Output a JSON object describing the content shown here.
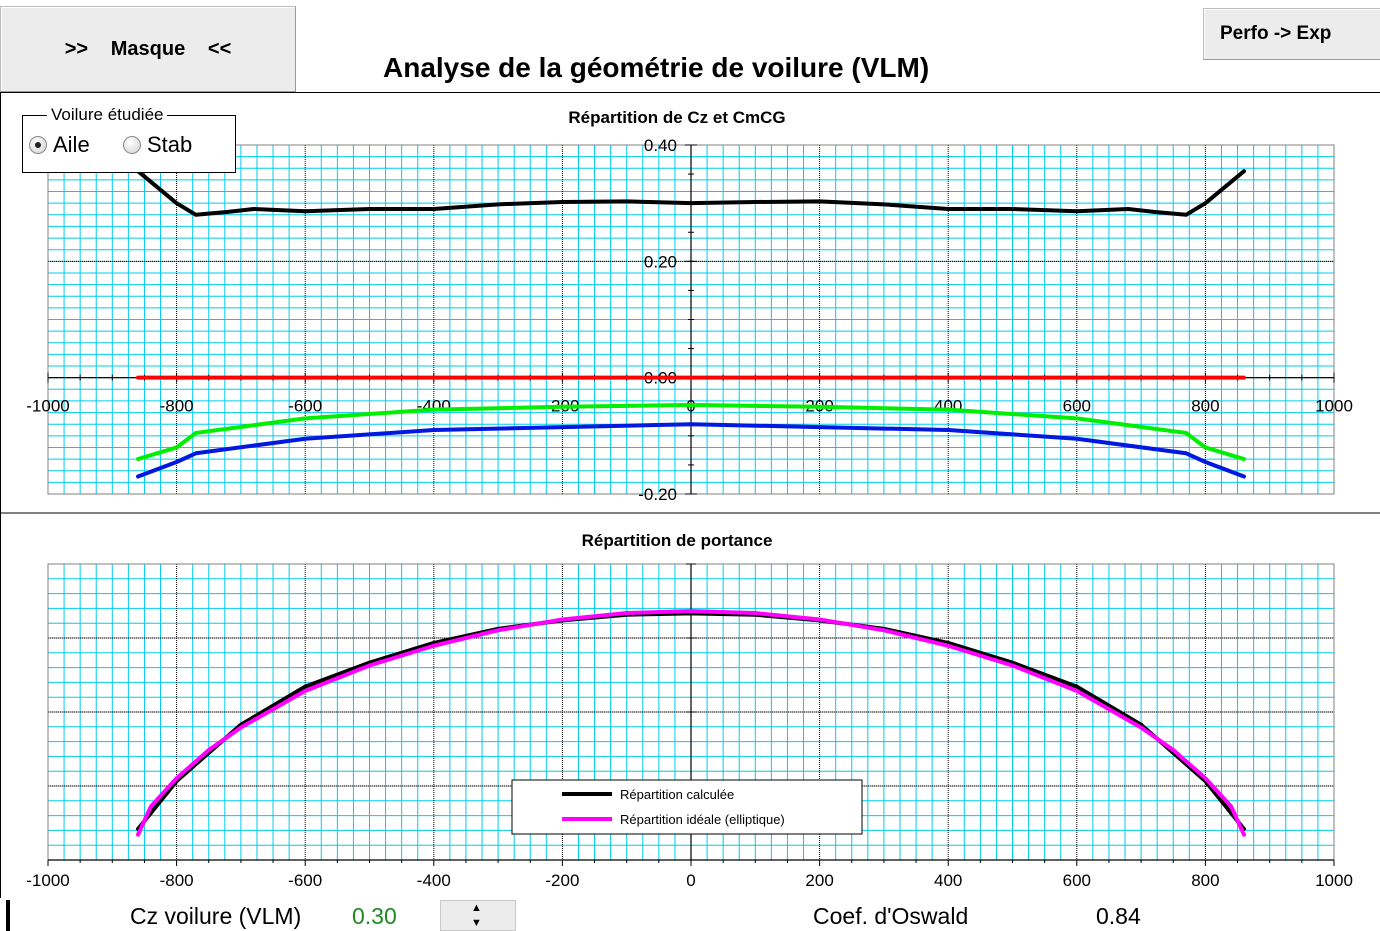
{
  "toolbar": {
    "masque_label": ">>   Masque   <<",
    "perfo_label": "Perfo -> Exp"
  },
  "page_title": "Analyse de la géométrie de voilure (VLM)",
  "voilure": {
    "legend": "Voilure étudiée",
    "options": [
      "Aile",
      "Stab"
    ],
    "selected": "Aile"
  },
  "colors": {
    "cz_curve": "#000000",
    "zero_line": "#ff0000",
    "green_curve": "#00ee00",
    "blue_curve": "#0018e0",
    "ideal": "#ff00ff",
    "grid_major": "#000000",
    "grid_minor": "#00ccee"
  },
  "chart_data": [
    {
      "type": "line",
      "title": "Répartition de Cz et CmCG",
      "xlim": [
        -1000,
        1000
      ],
      "ylim": [
        -0.2,
        0.4
      ],
      "xticks": [
        -1000,
        -800,
        -600,
        -400,
        -200,
        0,
        200,
        400,
        600,
        800,
        1000
      ],
      "yticks": [
        -0.2,
        0.0,
        0.2,
        0.4
      ],
      "ytick_labels": [
        "-0.20",
        "0.00",
        "0.20",
        "0.40"
      ],
      "grid": true,
      "series": [
        {
          "color": "#000000",
          "x": [
            -860,
            -800,
            -770,
            -720,
            -680,
            -600,
            -500,
            -400,
            -300,
            -200,
            -100,
            0,
            100,
            200,
            300,
            400,
            500,
            600,
            680,
            720,
            770,
            800,
            860
          ],
          "y": [
            0.355,
            0.3,
            0.28,
            0.285,
            0.29,
            0.286,
            0.29,
            0.29,
            0.298,
            0.302,
            0.303,
            0.3,
            0.302,
            0.303,
            0.298,
            0.29,
            0.29,
            0.286,
            0.29,
            0.285,
            0.28,
            0.3,
            0.355
          ]
        },
        {
          "color": "#ff0000",
          "x": [
            -860,
            860
          ],
          "y": [
            0.0,
            0.0
          ]
        },
        {
          "color": "#00ee00",
          "x": [
            -860,
            -800,
            -770,
            -600,
            -400,
            -200,
            0,
            200,
            400,
            600,
            770,
            800,
            860
          ],
          "y": [
            -0.14,
            -0.12,
            -0.095,
            -0.07,
            -0.055,
            -0.05,
            -0.047,
            -0.05,
            -0.055,
            -0.07,
            -0.095,
            -0.12,
            -0.14
          ]
        },
        {
          "color": "#0018e0",
          "x": [
            -860,
            -800,
            -770,
            -600,
            -400,
            -200,
            0,
            200,
            400,
            600,
            770,
            800,
            860
          ],
          "y": [
            -0.17,
            -0.145,
            -0.13,
            -0.105,
            -0.09,
            -0.085,
            -0.08,
            -0.085,
            -0.09,
            -0.105,
            -0.13,
            -0.145,
            -0.17
          ]
        }
      ]
    },
    {
      "type": "line",
      "title": "Répartition de portance",
      "xlim": [
        -1000,
        1000
      ],
      "xticks": [
        -1000,
        -800,
        -600,
        -400,
        -200,
        0,
        200,
        400,
        600,
        800,
        1000
      ],
      "grid": true,
      "legend": "bottom-center",
      "series": [
        {
          "name": "Répartition calculée",
          "color": "#000000",
          "x": [
            -860,
            -800,
            -700,
            -600,
            -500,
            -400,
            -300,
            -200,
            -100,
            0,
            100,
            200,
            300,
            400,
            500,
            600,
            700,
            800,
            860
          ],
          "y": [
            0.11,
            0.28,
            0.48,
            0.615,
            0.7,
            0.77,
            0.82,
            0.85,
            0.87,
            0.875,
            0.87,
            0.85,
            0.82,
            0.77,
            0.7,
            0.615,
            0.48,
            0.28,
            0.11
          ]
        },
        {
          "name": "Répartition idéale (elliptique)",
          "color": "#ff00ff",
          "x": [
            -860,
            -840,
            -800,
            -750,
            -700,
            -600,
            -500,
            -400,
            -300,
            -200,
            -100,
            0,
            100,
            200,
            300,
            400,
            500,
            600,
            700,
            750,
            800,
            840,
            860
          ],
          "y": [
            0.09,
            0.19,
            0.29,
            0.39,
            0.47,
            0.6,
            0.69,
            0.76,
            0.815,
            0.853,
            0.876,
            0.883,
            0.876,
            0.853,
            0.815,
            0.76,
            0.69,
            0.6,
            0.47,
            0.39,
            0.29,
            0.19,
            0.09
          ]
        }
      ]
    }
  ],
  "footer": {
    "cz_label": "Cz voilure (VLM)",
    "cz_value": "0.30",
    "oswald_label": "Coef. d'Oswald",
    "oswald_value": "0.84"
  }
}
